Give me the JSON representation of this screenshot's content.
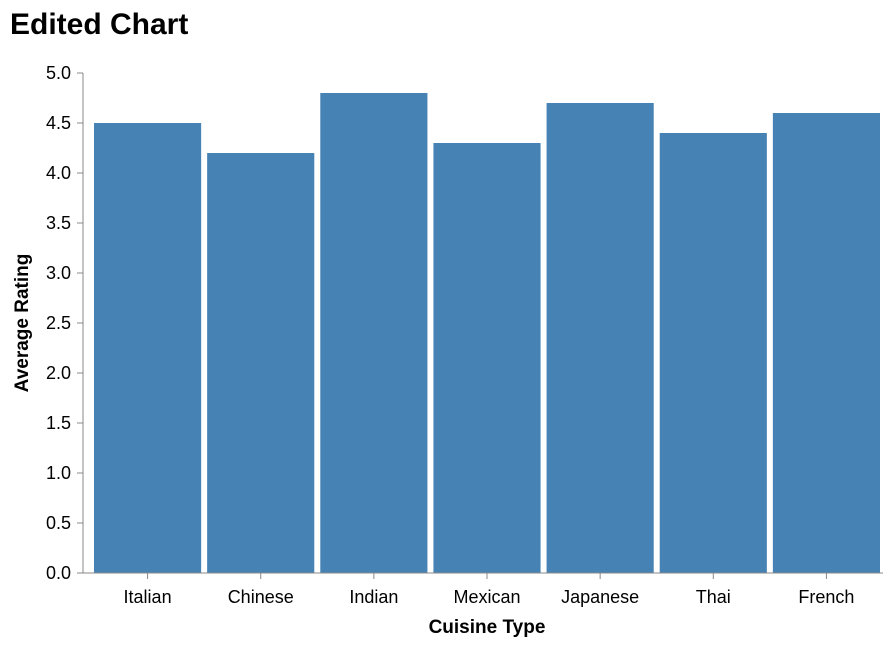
{
  "chart_data": {
    "type": "bar",
    "title": "Edited Chart",
    "xlabel": "Cuisine Type",
    "ylabel": "Average Rating",
    "categories": [
      "Italian",
      "Chinese",
      "Indian",
      "Mexican",
      "Japanese",
      "Thai",
      "French"
    ],
    "values": [
      4.5,
      4.2,
      4.8,
      4.3,
      4.7,
      4.4,
      4.6
    ],
    "ylim": [
      0,
      5
    ],
    "yticks": [
      "0.0",
      "0.5",
      "1.0",
      "1.5",
      "2.0",
      "2.5",
      "3.0",
      "3.5",
      "4.0",
      "4.5",
      "5.0"
    ],
    "grid": false,
    "legend": "none",
    "bar_color": "#4682b4",
    "axis_color": "#888888"
  }
}
